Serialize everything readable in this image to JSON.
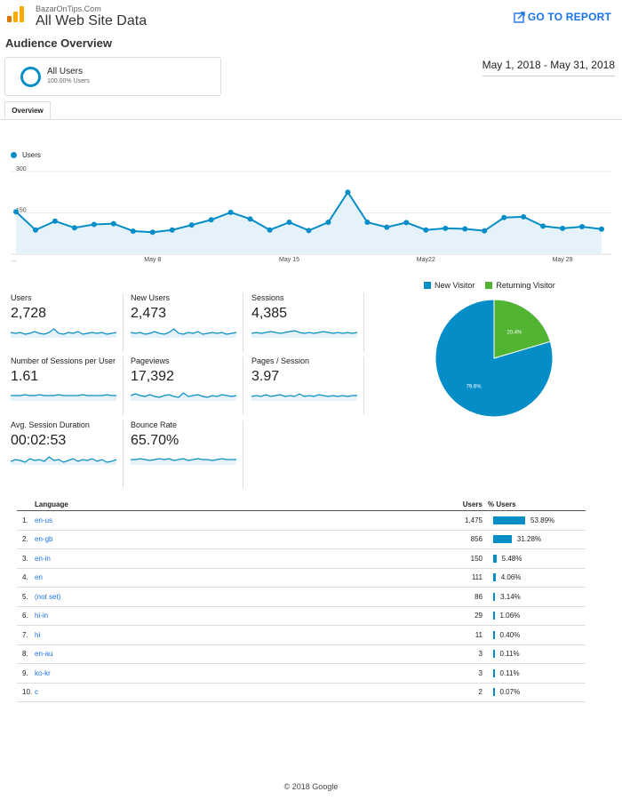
{
  "header": {
    "site_small": "BazarOnTips.Com",
    "site_title": "All Web Site Data",
    "goto_label": "GO TO REPORT"
  },
  "audience": {
    "title": "Audience Overview"
  },
  "segment": {
    "name": "All Users",
    "pct": "100.00% Users"
  },
  "date_range": "May 1, 2018 - May 31, 2018",
  "tabs": [
    {
      "label": "Overview"
    }
  ],
  "colors": {
    "accent": "#058dc7",
    "returning": "#50b432",
    "link": "#1a73e8"
  },
  "chart_data": [
    {
      "type": "area",
      "series": [
        {
          "name": "Users",
          "x": [
            1,
            2,
            3,
            4,
            5,
            6,
            7,
            8,
            9,
            10,
            11,
            12,
            13,
            14,
            15,
            16,
            17,
            18,
            19,
            20,
            21,
            22,
            23,
            24,
            25,
            26,
            27,
            28,
            29,
            30,
            31
          ],
          "values": [
            154,
            88,
            120,
            96,
            108,
            111,
            84,
            80,
            88,
            106,
            125,
            152,
            128,
            88,
            116,
            86,
            116,
            225,
            116,
            98,
            115,
            88,
            94,
            92,
            85,
            133,
            136,
            102,
            94,
            100,
            91
          ]
        }
      ],
      "ylim": [
        0,
        300
      ],
      "yticks": [
        "300",
        "150"
      ],
      "x_tick_labels": [
        {
          "x": 8,
          "label": "May 8"
        },
        {
          "x": 15,
          "label": "May 15"
        },
        {
          "x": 22,
          "label": "May22"
        },
        {
          "x": 29,
          "label": "May 29"
        }
      ],
      "x_start_label": "..."
    },
    {
      "type": "pie",
      "categories": [
        "New Visitor",
        "Returning Visitor"
      ],
      "values": [
        79.6,
        20.4
      ],
      "labels": [
        "79.6%",
        "20.4%"
      ]
    }
  ],
  "metrics": [
    {
      "label": "Users",
      "value": "2,728",
      "spark": [
        5,
        4,
        5,
        3,
        4,
        6,
        4,
        3,
        5,
        9,
        4,
        3,
        5,
        4,
        6,
        3,
        4,
        5,
        4,
        5,
        3,
        4,
        5
      ]
    },
    {
      "label": "New Users",
      "value": "2,473",
      "spark": [
        5,
        4,
        5,
        3,
        4,
        6,
        4,
        3,
        5,
        9,
        4,
        3,
        5,
        4,
        6,
        3,
        4,
        5,
        4,
        5,
        3,
        4,
        5
      ]
    },
    {
      "label": "Sessions",
      "value": "4,385",
      "spark": [
        4,
        5,
        4,
        5,
        6,
        5,
        4,
        5,
        6,
        7,
        5,
        4,
        5,
        4,
        5,
        6,
        5,
        4,
        5,
        4,
        5,
        4,
        5
      ]
    },
    {
      "label": "Number of Sessions per User",
      "value": "1.61",
      "spark": [
        5,
        5,
        5,
        6,
        5,
        5,
        6,
        5,
        5,
        5,
        6,
        5,
        5,
        5,
        5,
        6,
        5,
        5,
        5,
        5,
        6,
        5,
        5
      ]
    },
    {
      "label": "Pageviews",
      "value": "17,392",
      "spark": [
        5,
        7,
        5,
        4,
        6,
        4,
        3,
        5,
        6,
        4,
        3,
        8,
        4,
        5,
        6,
        4,
        3,
        5,
        4,
        6,
        5,
        4,
        5
      ]
    },
    {
      "label": "Pages / Session",
      "value": "3.97",
      "spark": [
        4,
        5,
        4,
        6,
        4,
        5,
        6,
        4,
        5,
        4,
        7,
        4,
        5,
        4,
        6,
        5,
        4,
        5,
        4,
        5,
        4,
        5,
        5
      ]
    },
    {
      "label": "Avg. Session Duration",
      "value": "00:02:53",
      "spark": [
        3,
        5,
        4,
        2,
        6,
        4,
        5,
        3,
        8,
        4,
        5,
        2,
        4,
        6,
        3,
        5,
        4,
        6,
        3,
        5,
        2,
        3,
        5
      ]
    },
    {
      "label": "Bounce Rate",
      "value": "65.70%",
      "spark": [
        5,
        5,
        6,
        5,
        4,
        5,
        6,
        5,
        6,
        4,
        5,
        6,
        4,
        5,
        6,
        5,
        5,
        4,
        5,
        6,
        5,
        5,
        5
      ]
    }
  ],
  "language_table": {
    "headers": {
      "name": "Language",
      "users": "Users",
      "pct": "% Users"
    },
    "rows": [
      {
        "rank": "1.",
        "name": "en-us",
        "users": "1,475",
        "pct": "53.89%",
        "share": 53.89
      },
      {
        "rank": "2.",
        "name": "en-gb",
        "users": "856",
        "pct": "31.28%",
        "share": 31.28
      },
      {
        "rank": "3.",
        "name": "en-in",
        "users": "150",
        "pct": "5.48%",
        "share": 5.48
      },
      {
        "rank": "4.",
        "name": "en",
        "users": "111",
        "pct": "4.06%",
        "share": 4.06
      },
      {
        "rank": "5.",
        "name": "(not set)",
        "users": "86",
        "pct": "3.14%",
        "share": 3.14
      },
      {
        "rank": "6.",
        "name": "hi-in",
        "users": "29",
        "pct": "1.06%",
        "share": 1.06
      },
      {
        "rank": "7.",
        "name": "hi",
        "users": "11",
        "pct": "0.40%",
        "share": 0.4
      },
      {
        "rank": "8.",
        "name": "en-au",
        "users": "3",
        "pct": "0.11%",
        "share": 0.11
      },
      {
        "rank": "9.",
        "name": "ko-kr",
        "users": "3",
        "pct": "0.11%",
        "share": 0.11
      },
      {
        "rank": "10.",
        "name": "c",
        "users": "2",
        "pct": "0.07%",
        "share": 0.07
      }
    ]
  },
  "footer": "© 2018 Google"
}
